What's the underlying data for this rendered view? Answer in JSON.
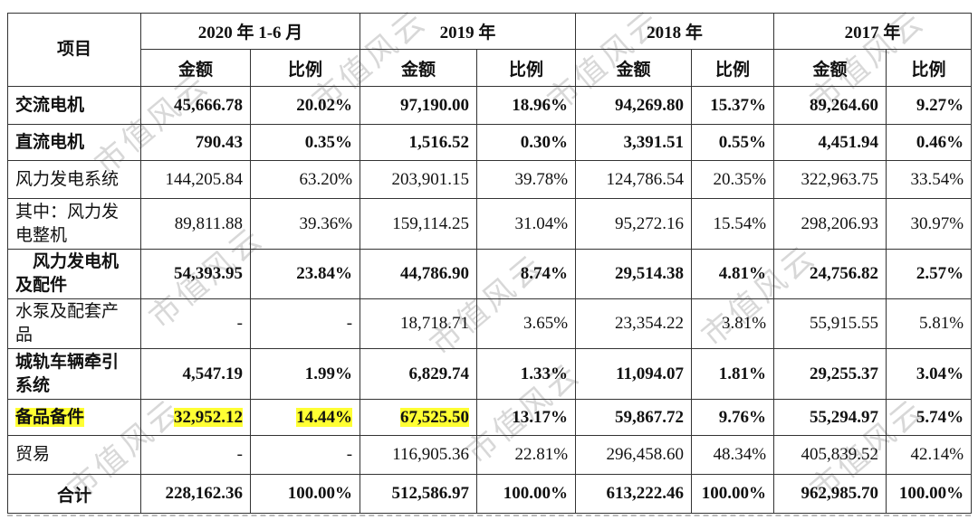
{
  "header": {
    "item_label": "项目",
    "years": [
      "2020 年 1-6 月",
      "2019 年",
      "2018 年",
      "2017 年"
    ],
    "amount_label": "金额",
    "ratio_label": "比例"
  },
  "rows": [
    {
      "label": "交流电机",
      "values": [
        "45,666.78",
        "20.02%",
        "97,190.00",
        "18.96%",
        "94,269.80",
        "15.37%",
        "89,264.60",
        "9.27%"
      ]
    },
    {
      "label": "直流电机",
      "values": [
        "790.43",
        "0.35%",
        "1,516.52",
        "0.30%",
        "3,391.51",
        "0.55%",
        "4,451.94",
        "0.46%"
      ]
    },
    {
      "label": "风力发电系统",
      "values": [
        "144,205.84",
        "63.20%",
        "203,901.15",
        "39.78%",
        "124,786.54",
        "20.35%",
        "322,963.75",
        "33.54%"
      ]
    },
    {
      "label": "其中：风力发电整机",
      "values": [
        "89,811.88",
        "39.36%",
        "159,114.25",
        "31.04%",
        "95,272.16",
        "15.54%",
        "298,206.93",
        "30.97%"
      ]
    },
    {
      "label": "风力发电机及配件",
      "values": [
        "54,393.95",
        "23.84%",
        "44,786.90",
        "8.74%",
        "29,514.38",
        "4.81%",
        "24,756.82",
        "2.57%"
      ]
    },
    {
      "label": "水泵及配套产品",
      "values": [
        "-",
        "-",
        "18,718.71",
        "3.65%",
        "23,354.22",
        "3.81%",
        "55,915.55",
        "5.81%"
      ]
    },
    {
      "label": "城轨车辆牵引系统",
      "values": [
        "4,547.19",
        "1.99%",
        "6,829.74",
        "1.33%",
        "11,094.07",
        "1.81%",
        "29,255.37",
        "3.04%"
      ]
    },
    {
      "label": "备品备件",
      "values": [
        "32,952.12",
        "14.44%",
        "67,525.50",
        "13.17%",
        "59,867.72",
        "9.76%",
        "55,294.97",
        "5.74%"
      ]
    },
    {
      "label": "贸易",
      "values": [
        "-",
        "-",
        "116,905.36",
        "22.81%",
        "296,458.60",
        "48.34%",
        "405,839.52",
        "42.14%"
      ]
    },
    {
      "label": "合计",
      "values": [
        "228,162.36",
        "100.00%",
        "512,586.97",
        "100.00%",
        "613,222.46",
        "100.00%",
        "962,985.70",
        "100.00%"
      ]
    }
  ],
  "watermark": "市值风云",
  "colors": {
    "highlight": "#ffff33",
    "border": "#333333",
    "text": "#111111",
    "watermark": "#d8d8d8"
  }
}
